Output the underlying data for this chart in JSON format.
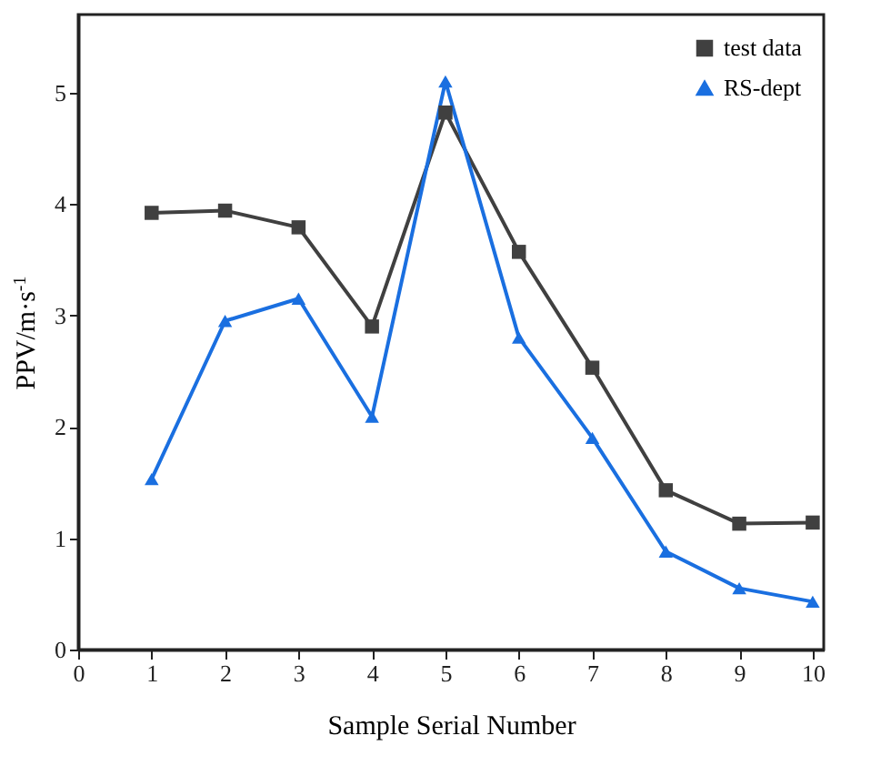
{
  "chart_data": {
    "type": "line",
    "xlabel": "Sample Serial Number",
    "ylabel": "PPV/m·s$^{-1}$",
    "x": [
      1,
      2,
      3,
      4,
      5,
      6,
      7,
      8,
      9,
      10
    ],
    "series": [
      {
        "name": "test data",
        "color": "#404040",
        "marker": "square",
        "values": [
          3.92,
          3.94,
          3.79,
          2.9,
          4.82,
          3.57,
          2.53,
          1.43,
          1.13,
          1.14
        ]
      },
      {
        "name": "RS-dept",
        "color": "#1a6fe0",
        "marker": "triangle",
        "values": [
          1.53,
          2.95,
          3.15,
          2.09,
          5.1,
          2.8,
          1.9,
          0.88,
          0.55,
          0.43
        ]
      }
    ],
    "xlim": [
      0,
      10.15
    ],
    "ylim": [
      0,
      5.7
    ],
    "xticks": [
      0,
      1,
      2,
      3,
      4,
      5,
      6,
      7,
      8,
      9,
      10
    ],
    "yticks": [
      0,
      1,
      2,
      3,
      4,
      5
    ],
    "legend": "top right",
    "grid": false,
    "line_style": "solid"
  }
}
